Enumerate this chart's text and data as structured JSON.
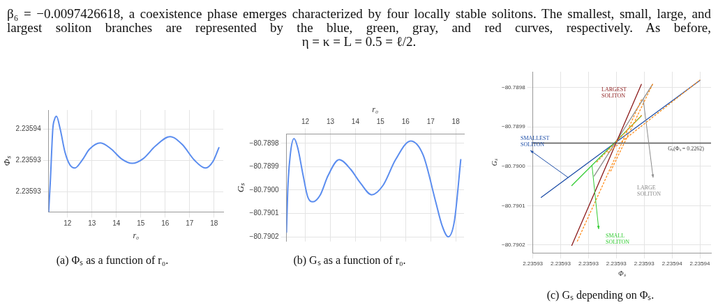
{
  "chart_data": [
    {
      "type": "other",
      "annotations": [
        "β₆ = −0.0097426618, a coexistence phase emerges characterized by four locally stable solitons. The smallest, small, large, and largest soliton branches are represented by the blue, green, gray, and red curves, respectively. As before,",
        "η = κ = L = 0.5 = ℓ/2."
      ]
    },
    {
      "type": "line",
      "title": "(a) Φₛ as a function of r₀.",
      "xlabel": "r₀",
      "ylabel": "Φₛ",
      "xlim": [
        11.23,
        18.38
      ],
      "xticks": [
        12,
        13,
        14,
        15,
        16,
        17,
        18
      ],
      "ylim": [
        2.2359307,
        2.2359372
      ],
      "yticks": [
        {
          "value": 2.235932,
          "label": "2.23593"
        },
        {
          "value": 2.235934,
          "label": "2.23593"
        },
        {
          "value": 2.235936,
          "label": "2.23594"
        }
      ],
      "grid": true,
      "legend": false,
      "marker": "none",
      "line_style": "solid",
      "series": [
        {
          "color": "#5b8def",
          "x": [
            11.23,
            11.3,
            11.4,
            11.47,
            11.55,
            11.7,
            11.9,
            12.1,
            12.3,
            12.6,
            12.9,
            13.35,
            13.8,
            14.2,
            14.65,
            15.1,
            15.6,
            16.2,
            16.7,
            17.2,
            17.65,
            17.95,
            18.2
          ],
          "values": [
            2.2359307,
            2.2359327,
            2.235936,
            2.2359366,
            2.2359368,
            2.235936,
            2.2359345,
            2.2359337,
            2.2359335,
            2.235934,
            2.2359347,
            2.2359351,
            2.2359347,
            2.2359341,
            2.2359338,
            2.2359341,
            2.2359349,
            2.2359355,
            2.235935,
            2.235934,
            2.2359335,
            2.2359339,
            2.2359348
          ]
        }
      ]
    },
    {
      "type": "line",
      "title": "(b) Gₛ as a function of r₀.",
      "xlabel": "r₀",
      "ylabel": "Gₛ",
      "xlim": [
        11.25,
        18.33
      ],
      "xticks": [
        12,
        13,
        14,
        15,
        16,
        17,
        18
      ],
      "ylim": [
        -80.79022,
        -80.78976
      ],
      "yticks": [
        {
          "value": -80.7902,
          "label": "−80.7902"
        },
        {
          "value": -80.7901,
          "label": "−80.7901"
        },
        {
          "value": -80.79,
          "label": "−80.7900"
        },
        {
          "value": -80.7899,
          "label": "−80.7899"
        },
        {
          "value": -80.7898,
          "label": "−80.7898"
        }
      ],
      "grid": true,
      "legend": false,
      "marker": "none",
      "line_style": "solid",
      "series": [
        {
          "color": "#5b8def",
          "x": [
            11.25,
            11.3,
            11.4,
            11.55,
            11.7,
            11.9,
            12.1,
            12.3,
            12.6,
            12.9,
            13.35,
            13.8,
            14.2,
            14.65,
            15.1,
            15.6,
            16.2,
            16.7,
            17.2,
            17.45,
            17.7,
            17.95,
            18.2
          ],
          "values": [
            -80.79018,
            -80.79,
            -80.78985,
            -80.78978,
            -80.78982,
            -80.78993,
            -80.79003,
            -80.79005,
            -80.79002,
            -80.78994,
            -80.78987,
            -80.78991,
            -80.78997,
            -80.79002,
            -80.78998,
            -80.78987,
            -80.78979,
            -80.78985,
            -80.79005,
            -80.79015,
            -80.7902,
            -80.79013,
            -80.78987
          ]
        }
      ]
    },
    {
      "type": "line",
      "title": "(c) Gₛ depending on Φₛ.",
      "xlabel": "Φₛ",
      "ylabel": "Gₛ",
      "xlim": [
        2.23593,
        2.2359364
      ],
      "xticks": [
        {
          "value": 2.23593,
          "label": "2.23593"
        },
        {
          "value": 2.235931,
          "label": "2.23593"
        },
        {
          "value": 2.235932,
          "label": "2.23593"
        },
        {
          "value": 2.235933,
          "label": "2.23593"
        },
        {
          "value": 2.235934,
          "label": "2.23593"
        },
        {
          "value": 2.235935,
          "label": "2.23594"
        },
        {
          "value": 2.235936,
          "label": "2.23594"
        }
      ],
      "ylim": [
        -80.79022,
        -80.78976
      ],
      "yticks": [
        {
          "value": -80.7902,
          "label": "−80.7902"
        },
        {
          "value": -80.7901,
          "label": "−80.7901"
        },
        {
          "value": -80.79,
          "label": "−80.7900"
        },
        {
          "value": -80.7899,
          "label": "−80.7899"
        },
        {
          "value": -80.7898,
          "label": "−80.7898"
        }
      ],
      "grid": true,
      "legend": false,
      "marker": "none",
      "ref_lines": [
        {
          "axis": "y",
          "value": -80.789941,
          "color": "#555555"
        }
      ],
      "annotations": [
        {
          "text": "Gₛ(Φₛ = 0.2262)",
          "x": 2.2359355,
          "y": -80.789941
        }
      ],
      "series": [
        {
          "name": "SMALLEST SOLITON",
          "color": "#1f4fa8",
          "line_style": "solid",
          "x": [
            2.2359303,
            2.235936
          ],
          "values": [
            -80.790079,
            -80.789782
          ]
        },
        {
          "name": "SMALL SOLITON",
          "color": "#33cc33",
          "line_style": "solid",
          "x": [
            2.2359314,
            2.2359339
          ],
          "values": [
            -80.790049,
            -80.789872
          ]
        },
        {
          "name": "LARGE SOLITON",
          "color": "#8c8c8c",
          "line_style": "solid",
          "x": [
            2.2359322,
            2.2359343
          ],
          "values": [
            -80.790025,
            -80.789792
          ]
        },
        {
          "name": "LARGEST SOLITON",
          "color": "#8b1a1a",
          "line_style": "solid",
          "x": [
            2.2359314,
            2.2359339
          ],
          "values": [
            -80.790201,
            -80.789792
          ]
        },
        {
          "color": "#ff8c1a",
          "line_style": "dotted",
          "x": [
            2.2359327,
            2.235936
          ],
          "values": [
            -80.789965,
            -80.789781
          ]
        },
        {
          "color": "#ff8c1a",
          "line_style": "dotted",
          "x": [
            2.2359328,
            2.2359343
          ],
          "values": [
            -80.790012,
            -80.789792
          ]
        },
        {
          "color": "#ff8c1a",
          "line_style": "dotted",
          "x": [
            2.2359323,
            2.2359339
          ],
          "values": [
            -80.789989,
            -80.789871
          ]
        },
        {
          "color": "#ff8c1a",
          "line_style": "dotted",
          "x": [
            2.2359316,
            2.2359339
          ],
          "values": [
            -80.79019,
            -80.789831
          ]
        }
      ]
    }
  ]
}
